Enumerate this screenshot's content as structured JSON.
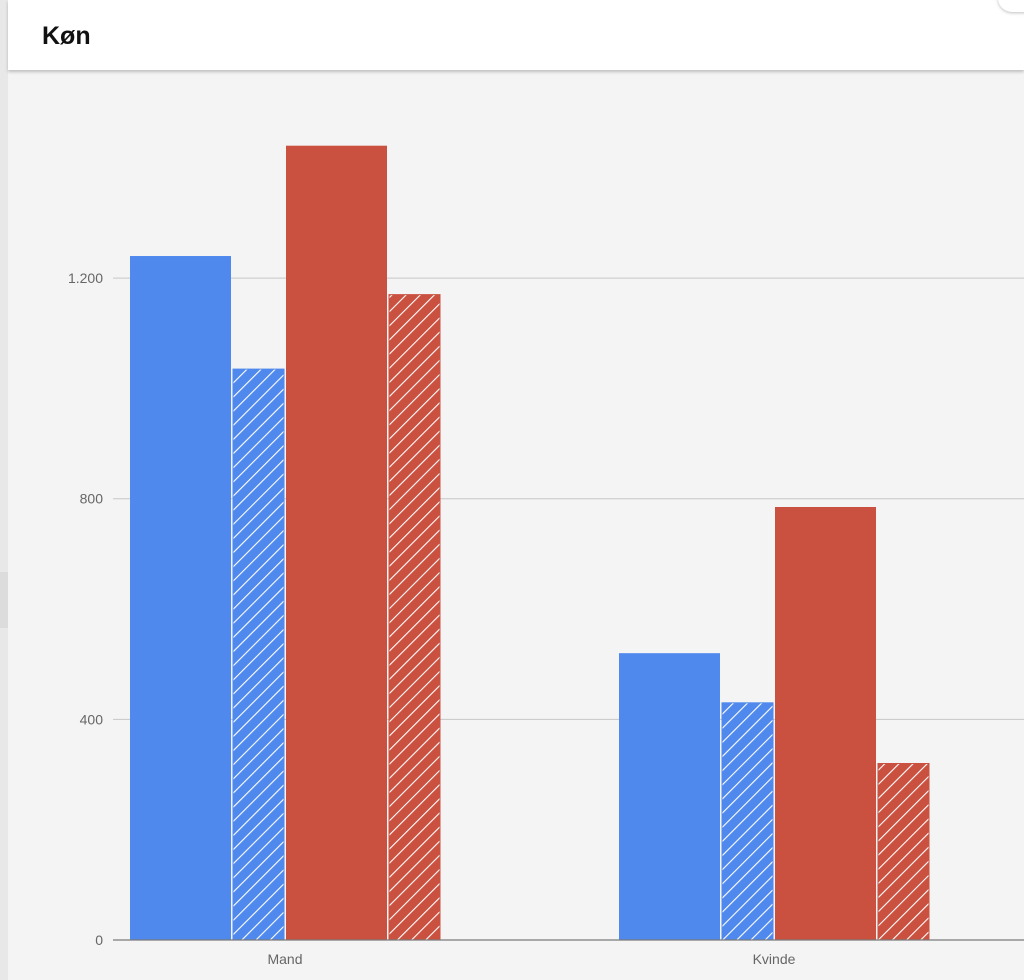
{
  "card": {
    "title": "Køn"
  },
  "colors": {
    "blue": "#5089ed",
    "red": "#ca5040",
    "grid": "#c6c6c6",
    "axis": "#7a7a7a",
    "background": "#f4f4f4"
  },
  "chart_data": {
    "type": "bar",
    "title": "Køn",
    "categories": [
      "Mand",
      "Kvinde"
    ],
    "series": [
      {
        "values": [
          1240,
          520
        ],
        "color": "#5089ed",
        "pattern": "solid"
      },
      {
        "values": [
          1035,
          430
        ],
        "color": "#5089ed",
        "pattern": "hatched"
      },
      {
        "values": [
          1440,
          785
        ],
        "color": "#ca5040",
        "pattern": "solid"
      },
      {
        "values": [
          1170,
          320
        ],
        "color": "#ca5040",
        "pattern": "hatched"
      }
    ],
    "yticks": [
      0,
      400,
      800,
      1200
    ],
    "ytick_labels": [
      "0",
      "400",
      "800",
      "1.200"
    ],
    "ylim": [
      0,
      1560
    ],
    "grid": true,
    "legend": "none"
  }
}
